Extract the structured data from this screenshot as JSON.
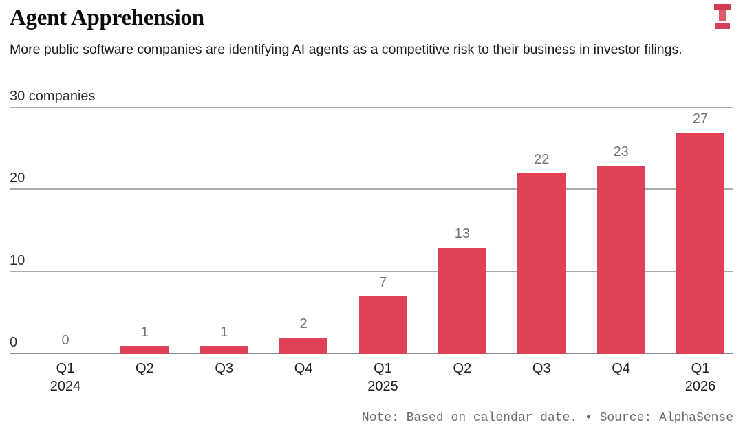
{
  "header": {
    "logo_alt": "the-information-logo",
    "logo_color": "#d4415a"
  },
  "chart_data": {
    "type": "bar",
    "title": "Agent Apprehension",
    "subtitle": "More public software companies are identifying AI agents as a competitive risk to their business in investor filings.",
    "categories": [
      {
        "quarter": "Q1",
        "year": "2024"
      },
      {
        "quarter": "Q2",
        "year": ""
      },
      {
        "quarter": "Q3",
        "year": ""
      },
      {
        "quarter": "Q4",
        "year": ""
      },
      {
        "quarter": "Q1",
        "year": "2025"
      },
      {
        "quarter": "Q2",
        "year": ""
      },
      {
        "quarter": "Q3",
        "year": ""
      },
      {
        "quarter": "Q4",
        "year": ""
      },
      {
        "quarter": "Q1",
        "year": "2026"
      }
    ],
    "values": [
      0,
      1,
      1,
      2,
      7,
      13,
      22,
      23,
      27
    ],
    "xlabel": "",
    "ylabel": "companies",
    "ylim": [
      0,
      30
    ],
    "y_ticks": [
      {
        "value": 0,
        "label": "0"
      },
      {
        "value": 10,
        "label": "10"
      },
      {
        "value": 20,
        "label": "20"
      },
      {
        "value": 30,
        "label": "30 companies"
      }
    ],
    "grid": "horizontal",
    "legend": "none",
    "bar_color": "#df4156",
    "grid_color": "#ababab",
    "axis_color": "#8d8d8d",
    "value_label_color": "#757575"
  },
  "footer": {
    "note": "Note: Based on calendar date. • Source: AlphaSense"
  }
}
